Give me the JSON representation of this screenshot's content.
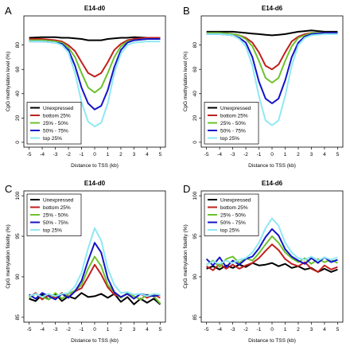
{
  "colors": {
    "Unexpressed": "#000000",
    "bottom 25%": "#c0201e",
    "25% - 50%": "#6cc22c",
    "50% - 75%": "#1414c8",
    "top 25%": "#8fe8f4"
  },
  "chart_data": [
    {
      "panel_label": "A",
      "type": "line",
      "title": "E14-d0",
      "xlabel": "Distance to TSS (kb)",
      "ylabel": "CpG methylation level (%)",
      "xlim": [
        -5,
        5
      ],
      "ylim": [
        0,
        100
      ],
      "xticks": [
        "-5",
        "-4",
        "-3",
        "-2",
        "-1",
        "0",
        "1",
        "2",
        "3",
        "4",
        "5"
      ],
      "yticks": [
        "0",
        "20",
        "40",
        "60",
        "80"
      ],
      "legend_position": "bottom-left",
      "x": [
        -5,
        -4,
        -3,
        -2.5,
        -2,
        -1.5,
        -1,
        -0.5,
        0,
        0.5,
        1,
        1.5,
        2,
        2.5,
        3,
        4,
        5
      ],
      "series": [
        {
          "name": "Unexpressed",
          "values": [
            86,
            86.5,
            86.5,
            86,
            86,
            85.5,
            85,
            84,
            84,
            84,
            85,
            85.5,
            86,
            86,
            86.5,
            86,
            86
          ]
        },
        {
          "name": "bottom 25%",
          "values": [
            85,
            85,
            84,
            83,
            80,
            75,
            66,
            57,
            54,
            57,
            66,
            76,
            81,
            84,
            85,
            86,
            86
          ]
        },
        {
          "name": "25% - 50%",
          "values": [
            84,
            84,
            83,
            82,
            78,
            70,
            57,
            45,
            41,
            45,
            57,
            70,
            79,
            83,
            84,
            85,
            85
          ]
        },
        {
          "name": "50% - 75%",
          "values": [
            83,
            83,
            82,
            81,
            76,
            63,
            45,
            32,
            27,
            30,
            43,
            62,
            76,
            82,
            84,
            85,
            85
          ]
        },
        {
          "name": "top 25%",
          "values": [
            83,
            83,
            82,
            80,
            74,
            57,
            33,
            17,
            13,
            16,
            32,
            57,
            73,
            80,
            82,
            83,
            83
          ]
        }
      ]
    },
    {
      "panel_label": "B",
      "type": "line",
      "title": "E14-d6",
      "xlabel": "Distance to TSS (kb)",
      "ylabel": "CpG methylation level (%)",
      "xlim": [
        -5,
        5
      ],
      "ylim": [
        0,
        100
      ],
      "xticks": [
        "-5",
        "-4",
        "-3",
        "-2",
        "-1",
        "0",
        "1",
        "2",
        "3",
        "4",
        "5"
      ],
      "yticks": [
        "0",
        "20",
        "40",
        "60",
        "80"
      ],
      "legend_position": "bottom-left",
      "x": [
        -5,
        -4,
        -3,
        -2.5,
        -2,
        -1.5,
        -1,
        -0.5,
        0,
        0.5,
        1,
        1.5,
        2,
        2.5,
        3,
        4,
        5
      ],
      "series": [
        {
          "name": "Unexpressed",
          "values": [
            91,
            91,
            91,
            90.5,
            90,
            89.5,
            89,
            88.5,
            88,
            88.5,
            89,
            90,
            91,
            91.5,
            92,
            91,
            91
          ]
        },
        {
          "name": "bottom 25%",
          "values": [
            90,
            90,
            89,
            88,
            86,
            82,
            74,
            63,
            60,
            64,
            74,
            83,
            87,
            89,
            90,
            90,
            90
          ]
        },
        {
          "name": "25% - 50%",
          "values": [
            90,
            90,
            89,
            88,
            85,
            79,
            67,
            53,
            49,
            53,
            67,
            79,
            86,
            88,
            90,
            90,
            90
          ]
        },
        {
          "name": "50% - 75%",
          "values": [
            89,
            89,
            88,
            86,
            82,
            70,
            50,
            36,
            32,
            36,
            51,
            70,
            82,
            87,
            89,
            90,
            90
          ]
        },
        {
          "name": "top 25%",
          "values": [
            89,
            89,
            88,
            85,
            79,
            63,
            38,
            18,
            14,
            18,
            38,
            63,
            80,
            86,
            88,
            89,
            89
          ]
        }
      ]
    },
    {
      "panel_label": "C",
      "type": "line",
      "title": "E14-d0",
      "xlabel": "Distance to TSS (kb)",
      "ylabel": "CpG methylation fidelity (%)",
      "xlim": [
        -5,
        5
      ],
      "ylim": [
        85,
        100
      ],
      "xticks": [
        "-5",
        "-4",
        "-3",
        "-2",
        "-1",
        "0",
        "1",
        "2",
        "3",
        "4",
        "5"
      ],
      "yticks": [
        "85",
        "90",
        "95",
        "100"
      ],
      "legend_position": "top-left",
      "x": [
        -5,
        -4.5,
        -4,
        -3.5,
        -3,
        -2.5,
        -2,
        -1.5,
        -1,
        -0.5,
        0,
        0.5,
        1,
        1.5,
        2,
        2.5,
        3,
        3.5,
        4,
        4.5,
        5
      ],
      "series": [
        {
          "name": "Unexpressed",
          "values": [
            87.3,
            87.0,
            87.8,
            87.2,
            87.9,
            87.0,
            87.6,
            87.3,
            88.0,
            87.5,
            87.6,
            87.9,
            87.4,
            87.9,
            86.9,
            87.5,
            86.6,
            87.3,
            86.8,
            87.3,
            86.6
          ]
        },
        {
          "name": "bottom 25%",
          "values": [
            87.5,
            88.0,
            87.2,
            87.8,
            87.4,
            88.0,
            87.5,
            88.2,
            88.6,
            90.0,
            91.5,
            90.3,
            88.7,
            87.8,
            87.5,
            87.9,
            87.3,
            87.9,
            87.4,
            87.8,
            87.4
          ]
        },
        {
          "name": "25% - 50%",
          "values": [
            87.4,
            87.9,
            87.5,
            87.2,
            88.0,
            87.3,
            87.9,
            88.3,
            89.0,
            91.0,
            92.5,
            91.3,
            89.0,
            88.1,
            87.4,
            88.0,
            87.6,
            87.2,
            87.8,
            87.6,
            86.7
          ]
        },
        {
          "name": "50% - 75%",
          "values": [
            87.8,
            87.3,
            88.0,
            87.6,
            87.2,
            87.9,
            87.4,
            88.2,
            89.5,
            92.0,
            94.2,
            93.0,
            89.8,
            88.1,
            87.5,
            87.9,
            87.3,
            87.9,
            87.7,
            87.6,
            87.8
          ]
        },
        {
          "name": "top 25%",
          "values": [
            87.6,
            87.9,
            87.5,
            87.9,
            87.6,
            87.9,
            88.0,
            88.8,
            90.5,
            93.5,
            96.0,
            94.5,
            91.0,
            89.0,
            88.0,
            88.1,
            87.8,
            87.9,
            87.6,
            87.9,
            87.8
          ]
        }
      ]
    },
    {
      "panel_label": "D",
      "type": "line",
      "title": "E14-d6",
      "xlabel": "Distance to TSS (kb)",
      "ylabel": "CpG methylation fidelity (%)",
      "xlim": [
        -5,
        5
      ],
      "ylim": [
        85,
        100
      ],
      "xticks": [
        "-5",
        "-4",
        "-3",
        "-2",
        "-1",
        "0",
        "1",
        "2",
        "3",
        "4",
        "5"
      ],
      "yticks": [
        "85",
        "90",
        "95",
        "100"
      ],
      "legend_position": "top-left",
      "x": [
        -5,
        -4.5,
        -4,
        -3.5,
        -3,
        -2.5,
        -2,
        -1.5,
        -1,
        -0.5,
        0,
        0.5,
        1,
        1.5,
        2,
        2.5,
        3,
        3.5,
        4,
        4.5,
        5
      ],
      "series": [
        {
          "name": "Unexpressed",
          "values": [
            91.0,
            91.3,
            90.9,
            91.4,
            91.1,
            91.5,
            91.2,
            91.7,
            91.4,
            91.5,
            91.7,
            91.3,
            91.6,
            91.1,
            91.3,
            90.9,
            91.1,
            90.6,
            91.0,
            90.6,
            90.9
          ]
        },
        {
          "name": "bottom 25%",
          "values": [
            91.3,
            90.8,
            91.6,
            91.0,
            91.5,
            91.0,
            91.4,
            91.7,
            92.3,
            93.2,
            94.0,
            93.3,
            92.2,
            91.6,
            91.3,
            91.8,
            91.0,
            90.6,
            91.4,
            90.9,
            91.2
          ]
        },
        {
          "name": "25% - 50%",
          "values": [
            91.5,
            92.0,
            91.2,
            92.2,
            92.5,
            91.7,
            92.3,
            92.0,
            92.9,
            94.0,
            95.0,
            94.2,
            93.0,
            92.3,
            91.8,
            92.3,
            91.6,
            92.2,
            91.8,
            92.1,
            91.7
          ]
        },
        {
          "name": "50% - 75%",
          "values": [
            92.2,
            91.4,
            92.4,
            91.2,
            92.0,
            91.5,
            92.2,
            92.5,
            93.5,
            94.9,
            95.9,
            95.1,
            93.4,
            92.5,
            92.0,
            91.6,
            92.3,
            91.7,
            92.4,
            91.8,
            92.1
          ]
        },
        {
          "name": "top 25%",
          "values": [
            91.5,
            91.9,
            91.6,
            92.0,
            91.7,
            92.1,
            92.3,
            93.0,
            94.2,
            96.0,
            97.2,
            96.3,
            94.2,
            93.0,
            92.3,
            92.1,
            92.5,
            92.0,
            92.4,
            92.1,
            92.4
          ]
        }
      ]
    }
  ]
}
